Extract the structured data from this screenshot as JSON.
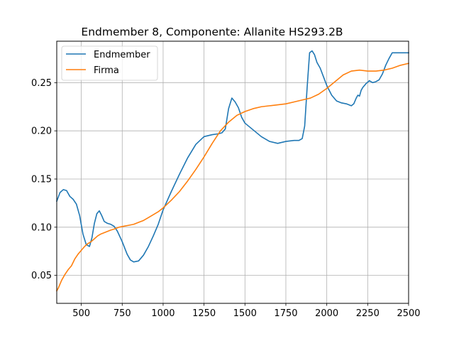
{
  "chart_data": {
    "type": "line",
    "title": "Endmember 8, Componente: Allanite HS293.2B",
    "xlabel": "",
    "ylabel": "",
    "xlim": [
      350,
      2500
    ],
    "ylim": [
      0.021,
      0.293
    ],
    "x_ticks": [
      500,
      750,
      1000,
      1250,
      1500,
      1750,
      2000,
      2250,
      2500
    ],
    "x_tick_labels": [
      "500",
      "750",
      "1000",
      "1250",
      "1500",
      "1750",
      "2000",
      "2250",
      "2500"
    ],
    "y_ticks": [
      0.05,
      0.1,
      0.15,
      0.2,
      0.25
    ],
    "y_tick_labels": [
      "0.05",
      "0.10",
      "0.15",
      "0.20",
      "0.25"
    ],
    "grid": true,
    "legend_position": "top-left",
    "series": [
      {
        "name": "Endmember",
        "color": "#1f77b4",
        "x": [
          350,
          370,
          390,
          410,
          430,
          450,
          470,
          490,
          510,
          530,
          550,
          565,
          580,
          595,
          610,
          625,
          640,
          660,
          680,
          700,
          720,
          750,
          780,
          800,
          820,
          850,
          880,
          910,
          940,
          970,
          1000,
          1050,
          1100,
          1150,
          1200,
          1250,
          1300,
          1340,
          1360,
          1380,
          1400,
          1420,
          1440,
          1460,
          1480,
          1500,
          1550,
          1600,
          1650,
          1700,
          1750,
          1800,
          1830,
          1850,
          1865,
          1880,
          1895,
          1910,
          1925,
          1940,
          1960,
          1980,
          2000,
          2030,
          2060,
          2090,
          2120,
          2150,
          2165,
          2180,
          2190,
          2200,
          2210,
          2220,
          2240,
          2260,
          2280,
          2300,
          2320,
          2340,
          2360,
          2380,
          2400,
          2420,
          2450,
          2480,
          2500
        ],
        "y": [
          0.127,
          0.136,
          0.139,
          0.138,
          0.132,
          0.129,
          0.124,
          0.112,
          0.093,
          0.082,
          0.08,
          0.089,
          0.104,
          0.114,
          0.117,
          0.112,
          0.106,
          0.104,
          0.103,
          0.101,
          0.096,
          0.085,
          0.072,
          0.066,
          0.064,
          0.065,
          0.071,
          0.08,
          0.091,
          0.103,
          0.118,
          0.137,
          0.155,
          0.172,
          0.186,
          0.194,
          0.196,
          0.197,
          0.198,
          0.202,
          0.223,
          0.234,
          0.23,
          0.224,
          0.214,
          0.208,
          0.201,
          0.194,
          0.189,
          0.187,
          0.189,
          0.19,
          0.19,
          0.192,
          0.205,
          0.245,
          0.281,
          0.283,
          0.279,
          0.271,
          0.265,
          0.256,
          0.247,
          0.237,
          0.231,
          0.229,
          0.228,
          0.226,
          0.228,
          0.234,
          0.237,
          0.236,
          0.242,
          0.245,
          0.249,
          0.252,
          0.25,
          0.251,
          0.253,
          0.259,
          0.268,
          0.275,
          0.281,
          0.281,
          0.281,
          0.281,
          0.281
        ]
      },
      {
        "name": "Firma",
        "color": "#ff7f0e",
        "x": [
          350,
          360,
          380,
          400,
          420,
          440,
          460,
          480,
          500,
          520,
          540,
          560,
          580,
          600,
          620,
          650,
          680,
          700,
          730,
          760,
          790,
          820,
          850,
          880,
          910,
          940,
          970,
          1000,
          1050,
          1100,
          1150,
          1200,
          1250,
          1300,
          1350,
          1400,
          1450,
          1500,
          1550,
          1600,
          1650,
          1700,
          1750,
          1800,
          1850,
          1900,
          1950,
          2000,
          2050,
          2100,
          2150,
          2200,
          2250,
          2300,
          2350,
          2400,
          2450,
          2500
        ],
        "y": [
          0.034,
          0.037,
          0.045,
          0.051,
          0.056,
          0.06,
          0.067,
          0.072,
          0.076,
          0.08,
          0.083,
          0.085,
          0.088,
          0.091,
          0.093,
          0.095,
          0.097,
          0.098,
          0.1,
          0.101,
          0.102,
          0.103,
          0.105,
          0.107,
          0.11,
          0.113,
          0.116,
          0.12,
          0.128,
          0.137,
          0.148,
          0.16,
          0.173,
          0.187,
          0.2,
          0.209,
          0.216,
          0.22,
          0.223,
          0.225,
          0.226,
          0.227,
          0.228,
          0.23,
          0.232,
          0.234,
          0.238,
          0.244,
          0.251,
          0.258,
          0.262,
          0.263,
          0.262,
          0.262,
          0.263,
          0.265,
          0.268,
          0.27
        ]
      }
    ]
  }
}
